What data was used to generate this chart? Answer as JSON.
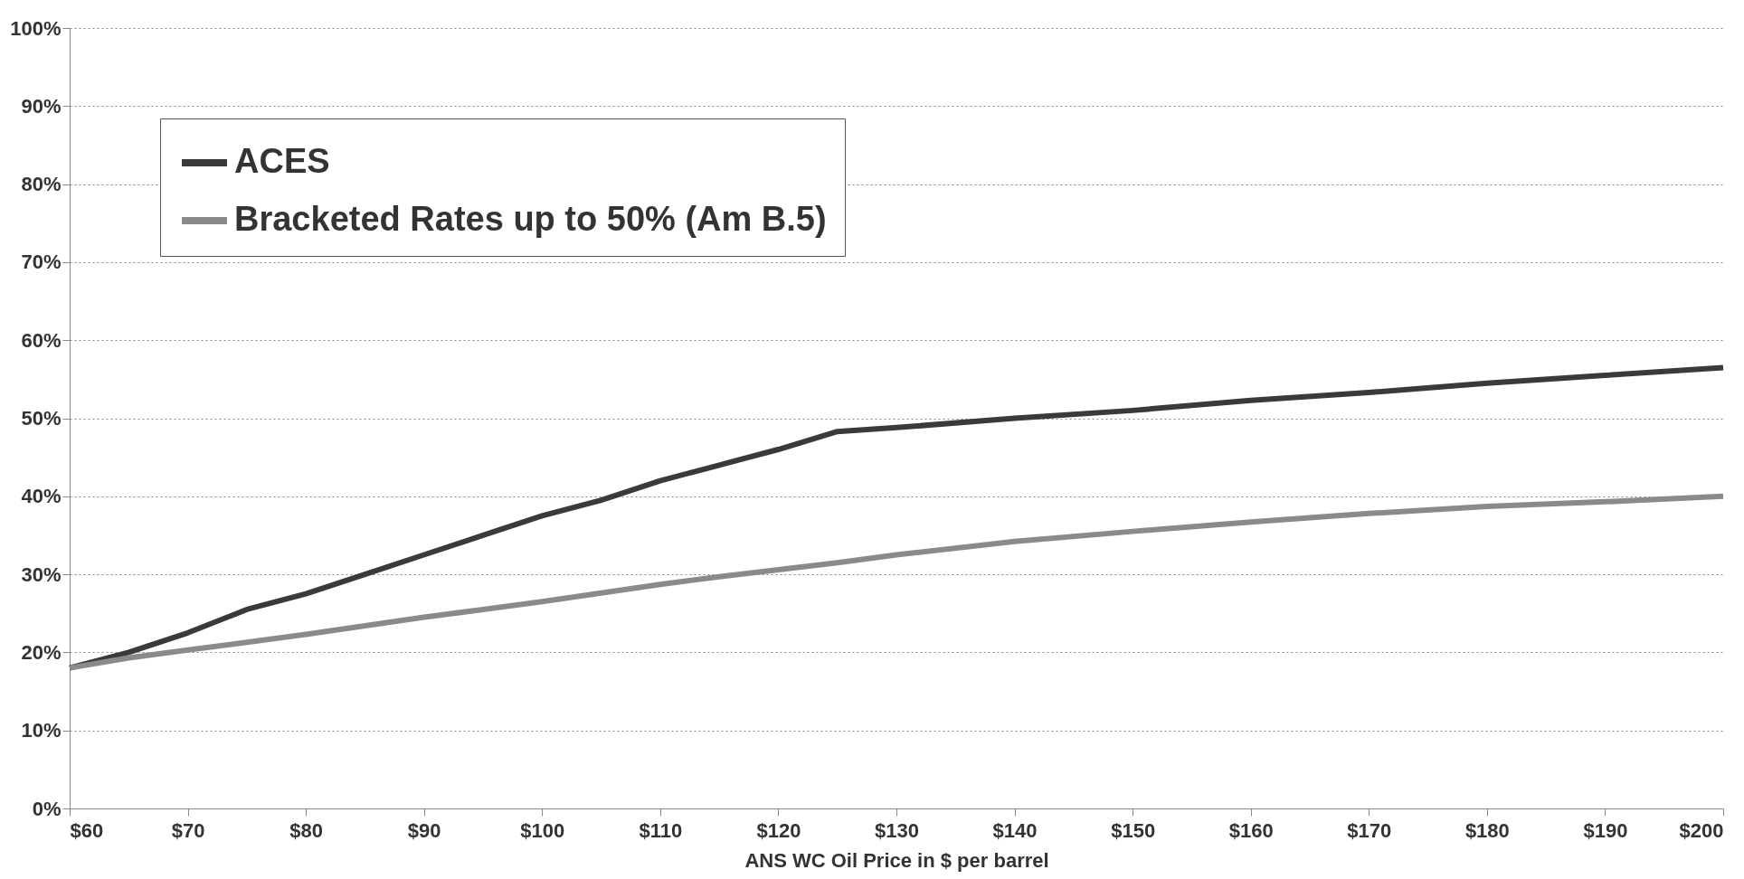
{
  "chart_data": {
    "type": "line",
    "xlabel": "ANS WC Oil Price in $ per barrel",
    "x": [
      60,
      65,
      70,
      75,
      80,
      85,
      90,
      95,
      100,
      105,
      110,
      115,
      120,
      125,
      130,
      140,
      150,
      160,
      170,
      180,
      190,
      200
    ],
    "series": [
      {
        "name": "ACES",
        "color": "#3a3a3a",
        "values": [
          18,
          20,
          22.5,
          25.5,
          27.5,
          30,
          32.5,
          35,
          37.5,
          39.5,
          42,
          44,
          46,
          48.3,
          48.8,
          50,
          51,
          52.3,
          53.3,
          54.5,
          55.5,
          56.5
        ]
      },
      {
        "name": "Bracketed Rates up to 50% (Am B.5)",
        "color": "#8a8a8a",
        "values": [
          18,
          19.3,
          20.3,
          21.3,
          22.3,
          23.4,
          24.5,
          25.5,
          26.5,
          27.6,
          28.7,
          29.7,
          30.6,
          31.5,
          32.5,
          34.2,
          35.5,
          36.7,
          37.8,
          38.7,
          39.3,
          40
        ]
      }
    ],
    "xlim": [
      60,
      200
    ],
    "xticks": [
      {
        "value": 60,
        "label": "$60"
      },
      {
        "value": 70,
        "label": "$70"
      },
      {
        "value": 80,
        "label": "$80"
      },
      {
        "value": 90,
        "label": "$90"
      },
      {
        "value": 100,
        "label": "$100"
      },
      {
        "value": 110,
        "label": "$110"
      },
      {
        "value": 120,
        "label": "$120"
      },
      {
        "value": 130,
        "label": "$130"
      },
      {
        "value": 140,
        "label": "$140"
      },
      {
        "value": 150,
        "label": "$150"
      },
      {
        "value": 160,
        "label": "$160"
      },
      {
        "value": 170,
        "label": "$170"
      },
      {
        "value": 180,
        "label": "$180"
      },
      {
        "value": 190,
        "label": "$190"
      },
      {
        "value": 200,
        "label": "$200"
      }
    ],
    "ylim": [
      0,
      100
    ],
    "yticks": [
      {
        "value": 0,
        "label": "0%"
      },
      {
        "value": 10,
        "label": "10%"
      },
      {
        "value": 20,
        "label": "20%"
      },
      {
        "value": 30,
        "label": "30%"
      },
      {
        "value": 40,
        "label": "40%"
      },
      {
        "value": 50,
        "label": "50%"
      },
      {
        "value": 60,
        "label": "60%"
      },
      {
        "value": 70,
        "label": "70%"
      },
      {
        "value": 80,
        "label": "80%"
      },
      {
        "value": 90,
        "label": "90%"
      },
      {
        "value": 100,
        "label": "100%"
      }
    ],
    "grid": "y",
    "legend": "top left",
    "marker": "none",
    "line_style": "solid"
  }
}
